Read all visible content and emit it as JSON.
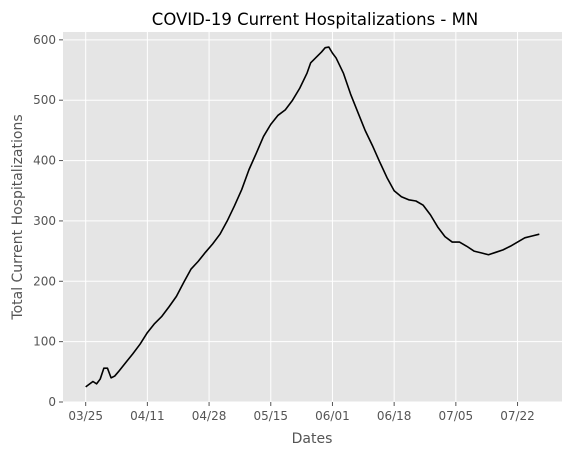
{
  "chart_data": {
    "type": "line",
    "title": "COVID-19 Current Hospitalizations - MN",
    "xlabel": "Dates",
    "ylabel": "Total Current Hospitalizations",
    "x_tick_labels": [
      "03/25",
      "04/11",
      "04/28",
      "05/15",
      "06/01",
      "06/18",
      "07/05",
      "07/22"
    ],
    "y_ticks": [
      0,
      100,
      200,
      300,
      400,
      500,
      600
    ],
    "ylim": [
      0,
      613
    ],
    "grid": true,
    "line_color": "#000000",
    "background_color": "#e5e5e5",
    "grid_color": "#ffffff",
    "series": [
      {
        "x": [
          "03/25",
          "03/27",
          "03/28",
          "03/29",
          "03/30",
          "03/31",
          "04/01",
          "04/02",
          "04/03",
          "04/05",
          "04/07",
          "04/09",
          "04/11",
          "04/13",
          "04/15",
          "04/17",
          "04/19",
          "04/21",
          "04/23",
          "04/25",
          "04/27",
          "04/29",
          "05/01",
          "05/03",
          "05/05",
          "05/07",
          "05/09",
          "05/11",
          "05/13",
          "05/15",
          "05/17",
          "05/19",
          "05/21",
          "05/23",
          "05/25",
          "05/26",
          "05/27",
          "05/29",
          "05/30",
          "05/31",
          "06/01",
          "06/02",
          "06/04",
          "06/06",
          "06/08",
          "06/10",
          "06/12",
          "06/14",
          "06/16",
          "06/18",
          "06/20",
          "06/22",
          "06/24",
          "06/26",
          "06/28",
          "06/30",
          "07/02",
          "07/04",
          "07/06",
          "07/08",
          "07/10",
          "07/12",
          "07/14",
          "07/16",
          "07/18",
          "07/20",
          "07/22",
          "07/24",
          "07/26",
          "07/28"
        ],
        "y": [
          25,
          34,
          30,
          38,
          56,
          56,
          40,
          43,
          50,
          65,
          80,
          96,
          115,
          130,
          142,
          158,
          175,
          198,
          220,
          233,
          248,
          262,
          278,
          300,
          325,
          352,
          385,
          412,
          440,
          460,
          475,
          484,
          500,
          520,
          545,
          562,
          568,
          580,
          587,
          588,
          578,
          570,
          545,
          510,
          480,
          450,
          425,
          398,
          372,
          350,
          340,
          335,
          333,
          326,
          310,
          290,
          274,
          265,
          265,
          258,
          250,
          247,
          244,
          248,
          252,
          258,
          265,
          272,
          275,
          278
        ]
      }
    ]
  }
}
